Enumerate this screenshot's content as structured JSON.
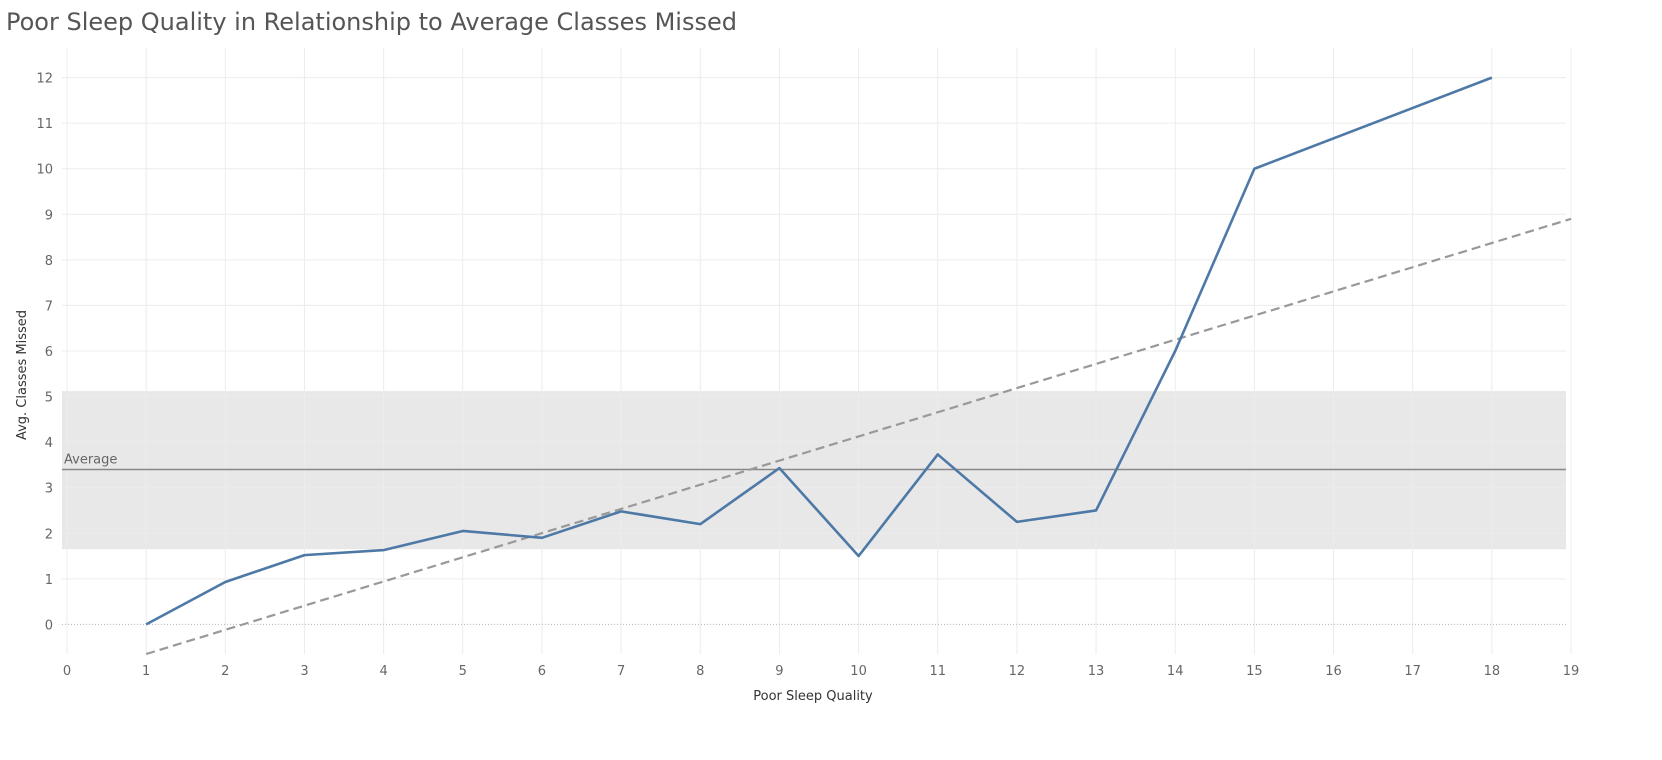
{
  "chart_data": {
    "type": "line",
    "title": "Poor Sleep Quality in Relationship to Average Classes Missed",
    "xlabel": "Poor Sleep Quality",
    "ylabel": "Avg. Classes Missed",
    "xlim": [
      0,
      19
    ],
    "ylim": [
      -0.65,
      12.65
    ],
    "x_ticks": [
      0,
      1,
      2,
      3,
      4,
      5,
      6,
      7,
      8,
      9,
      10,
      11,
      12,
      13,
      14,
      15,
      16,
      17,
      18,
      19
    ],
    "y_ticks": [
      0,
      1,
      2,
      3,
      4,
      5,
      6,
      7,
      8,
      9,
      10,
      11,
      12
    ],
    "grid": true,
    "series": [
      {
        "x": [
          1,
          2,
          3,
          4,
          5,
          6,
          7,
          8,
          9,
          10,
          11,
          12,
          13,
          14,
          15,
          18
        ],
        "values": [
          0,
          0.93,
          1.52,
          1.63,
          2.05,
          1.9,
          2.48,
          2.2,
          3.43,
          1.5,
          3.73,
          2.25,
          2.5,
          6.0,
          10.0,
          12.0
        ],
        "color": "#4e79a7"
      }
    ],
    "trend_line": {
      "x_start": 1,
      "y_start": -0.65,
      "x_end": 19,
      "y_end": 8.9,
      "color": "#999999",
      "style": "dashed"
    },
    "reference_line": {
      "label": "Average",
      "value": 3.4,
      "color": "#888888"
    },
    "reference_band": {
      "from": 1.65,
      "to": 5.12,
      "color": "#e8e8e8"
    }
  }
}
